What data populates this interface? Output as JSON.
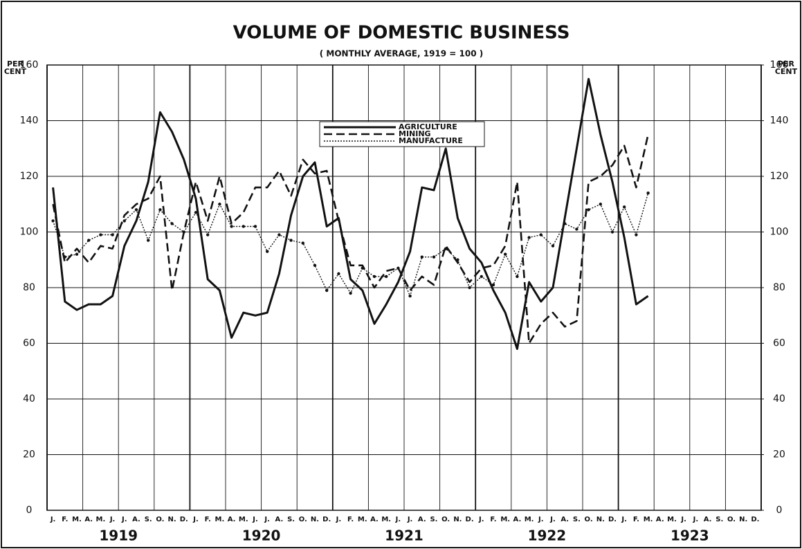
{
  "chart_data": {
    "type": "line",
    "title": "VOLUME OF DOMESTIC BUSINESS",
    "subtitle": "( MONTHLY AVERAGE, 1919 = 100 )",
    "y_label_lines": [
      "PER",
      "CENT"
    ],
    "y2_label_lines": [
      "PER",
      "CENT"
    ],
    "categories": [
      "J.",
      "F.",
      "M.",
      "A.",
      "M.",
      "J.",
      "J.",
      "A.",
      "S.",
      "O.",
      "N.",
      "D.",
      "J.",
      "F.",
      "M.",
      "A.",
      "M.",
      "J.",
      "J.",
      "A.",
      "S.",
      "O.",
      "N.",
      "D.",
      "J.",
      "F.",
      "M.",
      "A.",
      "M.",
      "J.",
      "J.",
      "A.",
      "S.",
      "O.",
      "N.",
      "D.",
      "J.",
      "F.",
      "M.",
      "A.",
      "M.",
      "J.",
      "J.",
      "A.",
      "S.",
      "O.",
      "N.",
      "D.",
      "J.",
      "F.",
      "M.",
      "A.",
      "M.",
      "J.",
      "J.",
      "A.",
      "S.",
      "O.",
      "N.",
      "D."
    ],
    "years": [
      "1919",
      "1920",
      "1921",
      "1922",
      "1923"
    ],
    "ylim": [
      0,
      160
    ],
    "yticks": [
      0,
      20,
      40,
      60,
      80,
      100,
      120,
      140,
      160
    ],
    "y2lim": [
      0,
      160
    ],
    "y2ticks": [
      0,
      20,
      40,
      60,
      80,
      100,
      120,
      140,
      160
    ],
    "grid": true,
    "legend": "upper center",
    "series": [
      {
        "name": "AGRICULTURE",
        "color": "#111111",
        "style": "solid",
        "values": [
          116,
          75,
          72,
          74,
          74,
          77,
          95,
          104,
          118,
          143,
          136,
          126,
          112,
          83,
          79,
          62,
          71,
          70,
          71,
          85,
          106,
          120,
          125,
          102,
          105,
          83,
          79,
          67,
          74,
          82,
          93,
          116,
          115,
          130,
          105,
          94,
          89,
          79,
          71,
          58,
          82,
          75,
          80,
          105,
          130,
          155,
          135,
          118,
          98,
          74,
          77,
          null,
          null,
          null,
          null,
          null,
          null,
          null,
          null,
          null
        ]
      },
      {
        "name": "MINING",
        "color": "#111111",
        "style": "dashed",
        "values": [
          110,
          89,
          94,
          89,
          95,
          94,
          106,
          110,
          112,
          120,
          79,
          100,
          118,
          104,
          120,
          103,
          107,
          116,
          116,
          122,
          113,
          126,
          121,
          122,
          104,
          88,
          88,
          80,
          86,
          87,
          79,
          84,
          81,
          95,
          89,
          82,
          87,
          88,
          95,
          118,
          60,
          67,
          71,
          66,
          68,
          118,
          120,
          124,
          131,
          116,
          135,
          null,
          null,
          null,
          null,
          null,
          null,
          null,
          null,
          null
        ]
      },
      {
        "name": "MANUFACTURE",
        "color": "#111111",
        "style": "dotted",
        "values": [
          104,
          91,
          92,
          97,
          99,
          99,
          104,
          108,
          97,
          108,
          103,
          100,
          107,
          99,
          110,
          102,
          102,
          102,
          93,
          99,
          97,
          96,
          88,
          79,
          85,
          78,
          87,
          84,
          84,
          87,
          77,
          91,
          91,
          94,
          90,
          80,
          84,
          81,
          92,
          84,
          98,
          99,
          95,
          103,
          101,
          108,
          110,
          100,
          109,
          99,
          114,
          null,
          null,
          null,
          null,
          null,
          null,
          null,
          null,
          null
        ]
      }
    ]
  }
}
